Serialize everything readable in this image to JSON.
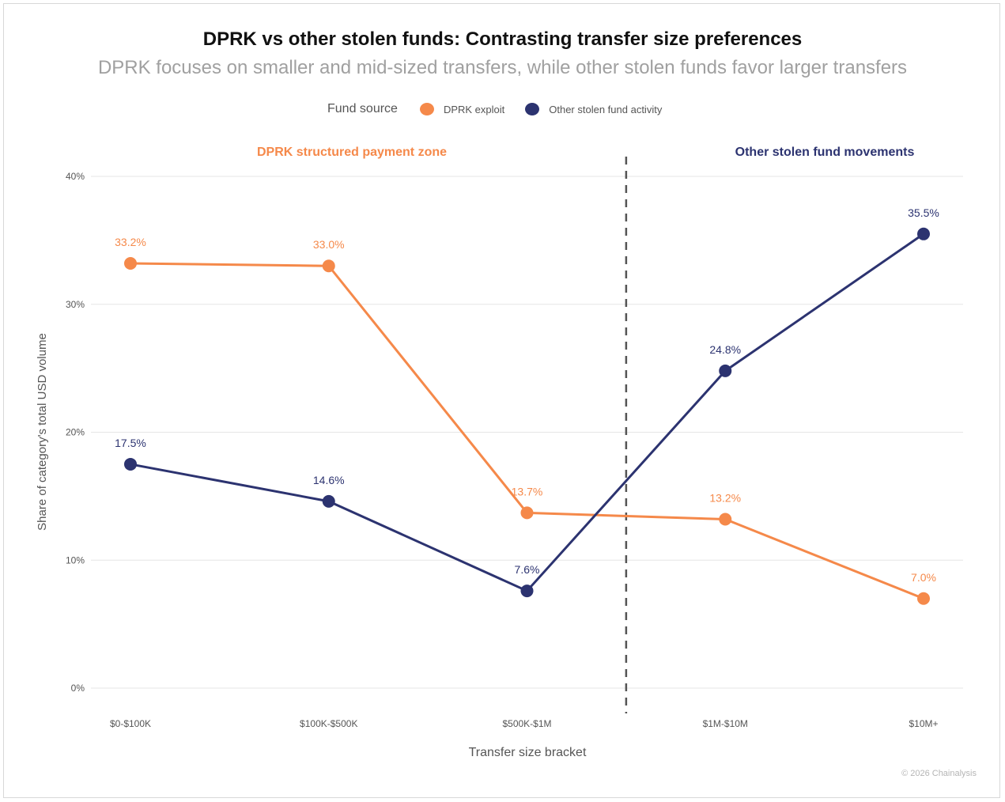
{
  "colors": {
    "dprk": "#F5894A",
    "other": "#2C3370",
    "grid": "#e6e6e6",
    "axis_text": "#555555"
  },
  "chart_data": {
    "type": "line",
    "title": "DPRK vs other stolen funds: Contrasting transfer size preferences",
    "subtitle": "DPRK focuses on smaller and mid-sized transfers, while other stolen funds favor larger transfers",
    "xlabel": "Transfer size bracket",
    "ylabel": "Share of category's total USD volume",
    "categories": [
      "$0-$100K",
      "$100K-$500K",
      "$500K-$1M",
      "$1M-$10M",
      "$10M+"
    ],
    "ylim": [
      0,
      40
    ],
    "yticks": [
      0,
      10,
      20,
      30,
      40
    ],
    "ytick_labels": [
      "0%",
      "10%",
      "20%",
      "30%",
      "40%"
    ],
    "grid": true,
    "legend": {
      "title": "Fund source",
      "placement": "top"
    },
    "series": [
      {
        "name": "DPRK exploit",
        "values": [
          33.2,
          33.0,
          13.7,
          13.2,
          7.0
        ],
        "labels": [
          "33.2%",
          "33.0%",
          "13.7%",
          "13.2%",
          "7.0%"
        ]
      },
      {
        "name": "Other stolen fund activity",
        "values": [
          17.5,
          14.6,
          7.6,
          24.8,
          35.5
        ],
        "labels": [
          "17.5%",
          "14.6%",
          "7.6%",
          "24.8%",
          "35.5%"
        ]
      }
    ],
    "annotations": {
      "left_zone": "DPRK structured payment zone",
      "right_zone": "Other stolen fund movements",
      "divider_between": [
        "$500K-$1M",
        "$1M-$10M"
      ]
    }
  },
  "credit": "© 2026 Chainalysis"
}
